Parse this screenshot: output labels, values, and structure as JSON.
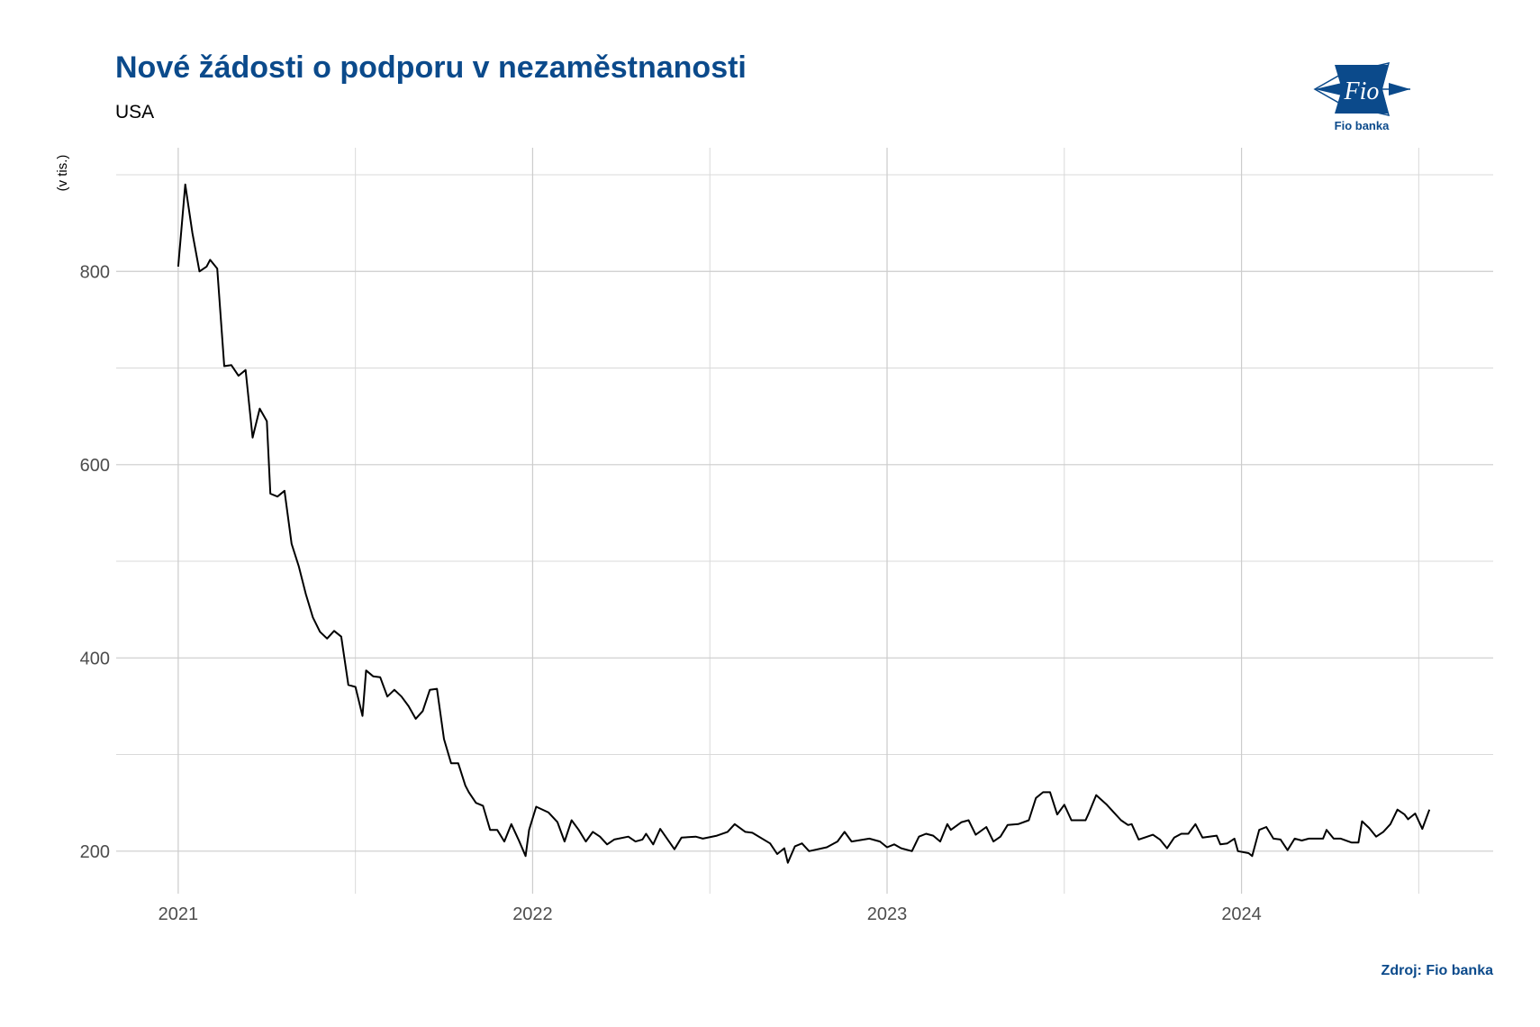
{
  "chart_data": {
    "type": "line",
    "title": "Nové žádosti o podporu v nezaměstnanosti",
    "subtitle": "USA",
    "y_label": "(v tis.)",
    "source": "Zdroj: Fio banka",
    "logo": {
      "mark": "Fio",
      "name": "Fio banka"
    },
    "xlim": [
      2020.825,
      2024.71
    ],
    "xticks": [
      2021,
      2022,
      2023,
      2024
    ],
    "xminor": [
      2021.5,
      2022.5,
      2023.5,
      2024.5
    ],
    "ylim": [
      156,
      928
    ],
    "yticks": [
      200,
      400,
      600,
      800
    ],
    "yminor": [
      300,
      500,
      700,
      900
    ],
    "grid": true,
    "series": [
      {
        "name": "Nové žádosti",
        "color": "#000000",
        "x": [
          2021.0,
          2021.02,
          2021.04,
          2021.06,
          2021.08,
          2021.09,
          2021.11,
          2021.13,
          2021.15,
          2021.17,
          2021.19,
          2021.21,
          2021.23,
          2021.25,
          2021.26,
          2021.28,
          2021.3,
          2021.32,
          2021.34,
          2021.36,
          2021.38,
          2021.4,
          2021.42,
          2021.44,
          2021.46,
          2021.48,
          2021.5,
          2021.52,
          2021.53,
          2021.55,
          2021.57,
          2021.59,
          2021.61,
          2021.63,
          2021.65,
          2021.67,
          2021.69,
          2021.71,
          2021.73,
          2021.75,
          2021.77,
          2021.79,
          2021.81,
          2021.82,
          2021.84,
          2021.86,
          2021.88,
          2021.9,
          2021.92,
          2021.94,
          2021.96,
          2021.98,
          2021.99,
          2022.01,
          2022.045,
          2022.07,
          2022.09,
          2022.11,
          2022.13,
          2022.15,
          2022.17,
          2022.19,
          2022.21,
          2022.23,
          2022.27,
          2022.29,
          2022.31,
          2022.32,
          2022.34,
          2022.36,
          2022.4,
          2022.42,
          2022.46,
          2022.48,
          2022.52,
          2022.55,
          2022.57,
          2022.6,
          2022.62,
          2022.67,
          2022.69,
          2022.71,
          2022.72,
          2022.74,
          2022.76,
          2022.78,
          2022.83,
          2022.86,
          2022.88,
          2022.9,
          2022.95,
          2022.98,
          2023.0,
          2023.02,
          2023.04,
          2023.07,
          2023.09,
          2023.11,
          2023.13,
          2023.15,
          2023.17,
          2023.18,
          2023.21,
          2023.23,
          2023.25,
          2023.28,
          2023.3,
          2023.32,
          2023.34,
          2023.37,
          2023.4,
          2023.42,
          2023.44,
          2023.46,
          2023.48,
          2023.5,
          2023.52,
          2023.56,
          2023.57,
          2023.59,
          2023.62,
          2023.64,
          2023.66,
          2023.68,
          2023.69,
          2023.71,
          2023.75,
          2023.77,
          2023.79,
          2023.81,
          2023.83,
          2023.85,
          2023.87,
          2023.89,
          2023.93,
          2023.94,
          2023.96,
          2023.98,
          2023.99,
          2024.02,
          2024.03,
          2024.05,
          2024.07,
          2024.09,
          2024.11,
          2024.13,
          2024.15,
          2024.17,
          2024.19,
          2024.23,
          2024.24,
          2024.26,
          2024.28,
          2024.31,
          2024.33,
          2024.34,
          2024.36,
          2024.38,
          2024.4,
          2024.42,
          2024.44,
          2024.46,
          2024.47,
          2024.49,
          2024.51,
          2024.53
        ],
        "values": [
          805,
          890,
          840,
          800,
          805,
          812,
          803,
          702,
          703,
          692,
          698,
          628,
          658,
          645,
          570,
          567,
          573,
          518,
          495,
          466,
          442,
          427,
          420,
          428,
          422,
          372,
          370,
          340,
          387,
          381,
          380,
          360,
          367,
          360,
          350,
          337,
          345,
          367,
          368,
          316,
          291,
          291,
          268,
          261,
          250,
          247,
          222,
          222,
          210,
          228,
          212,
          195,
          222,
          246,
          240,
          230,
          210,
          232,
          222,
          210,
          220,
          215,
          207,
          212,
          215,
          210,
          212,
          218,
          207,
          223,
          202,
          214,
          215,
          213,
          216,
          220,
          228,
          220,
          219,
          208,
          197,
          203,
          188,
          205,
          208,
          200,
          204,
          210,
          220,
          210,
          213,
          210,
          204,
          207,
          203,
          200,
          215,
          218,
          216,
          210,
          228,
          222,
          230,
          232,
          217,
          225,
          210,
          215,
          227,
          228,
          232,
          255,
          261,
          261,
          238,
          248,
          232,
          232,
          240,
          258,
          248,
          240,
          232,
          227,
          228,
          212,
          217,
          212,
          203,
          214,
          218,
          218,
          228,
          214,
          216,
          207,
          208,
          213,
          200,
          198,
          195,
          222,
          225,
          213,
          212,
          201,
          213,
          211,
          213,
          213,
          222,
          213,
          213,
          209,
          209,
          231,
          224,
          215,
          220,
          228,
          243,
          238,
          233,
          239,
          223,
          243
        ]
      }
    ]
  }
}
